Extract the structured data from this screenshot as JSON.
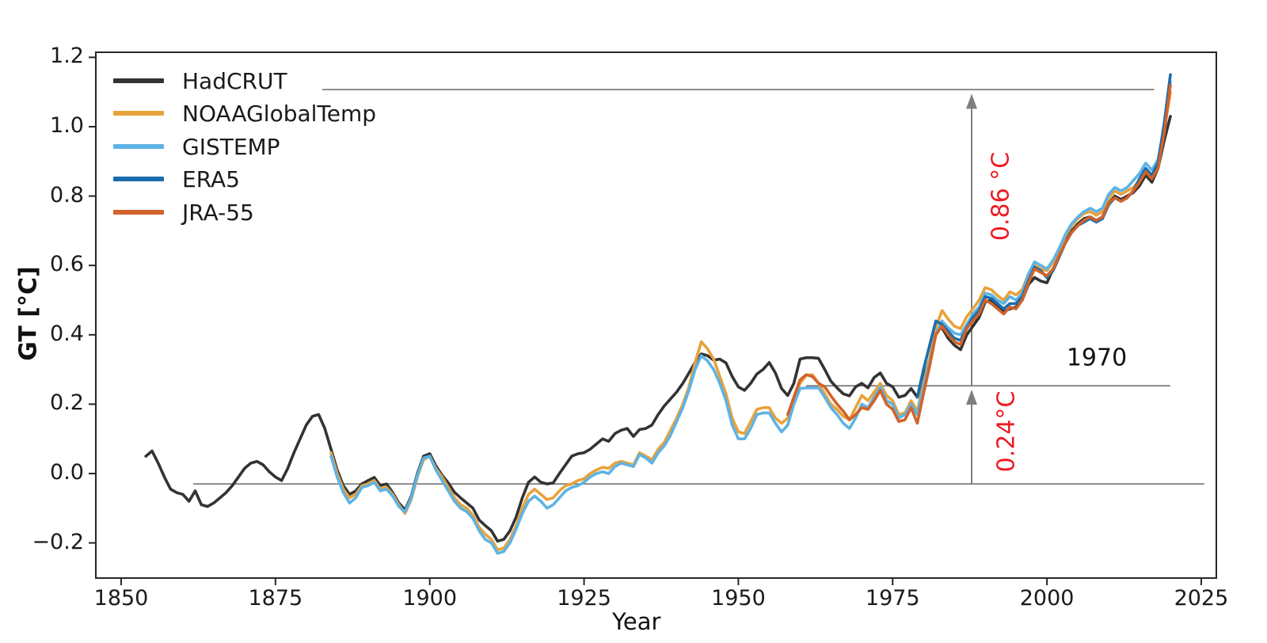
{
  "chart_data": {
    "type": "line",
    "title": "",
    "xlabel": "Year",
    "ylabel": "GT [°C]",
    "xlim": [
      1845.9,
      2027.4
    ],
    "ylim": [
      -0.3,
      1.215
    ],
    "grid": false,
    "legend_position": "upper-left",
    "x_ticks": [
      1850,
      1875,
      1900,
      1925,
      1950,
      1975,
      2000,
      2025
    ],
    "y_ticks": [
      "1.2",
      "1.0",
      "0.8",
      "0.6",
      "0.4",
      "0.2",
      "0.0",
      "−0.2"
    ],
    "y_tick_values": [
      1.2,
      1.0,
      0.8,
      0.6,
      0.4,
      0.2,
      0.0,
      -0.2
    ],
    "axis_color": "#262626",
    "annotation_gray": "#7f7f7f",
    "annotation_red": "#ec1c24",
    "series": [
      {
        "name": "HadCRUT",
        "color": "#333333",
        "start_year": 1854,
        "values": [
          0.05,
          0.065,
          0.03,
          -0.01,
          -0.045,
          -0.055,
          -0.06,
          -0.08,
          -0.05,
          -0.09,
          -0.095,
          -0.085,
          -0.07,
          -0.055,
          -0.035,
          -0.01,
          0.015,
          0.03,
          0.035,
          0.025,
          0.005,
          -0.01,
          -0.02,
          0.015,
          0.06,
          0.1,
          0.14,
          0.165,
          0.17,
          0.13,
          0.07,
          0.01,
          -0.035,
          -0.06,
          -0.05,
          -0.03,
          -0.02,
          -0.011,
          -0.035,
          -0.03,
          -0.055,
          -0.085,
          -0.105,
          -0.066,
          0.0,
          0.05,
          0.057,
          0.022,
          -0.005,
          -0.027,
          -0.054,
          -0.07,
          -0.085,
          -0.1,
          -0.134,
          -0.15,
          -0.165,
          -0.195,
          -0.19,
          -0.165,
          -0.125,
          -0.07,
          -0.025,
          -0.01,
          -0.025,
          -0.03,
          -0.027,
          0.0,
          0.025,
          0.05,
          0.057,
          0.06,
          0.07,
          0.085,
          0.1,
          0.093,
          0.115,
          0.125,
          0.13,
          0.107,
          0.127,
          0.13,
          0.14,
          0.17,
          0.195,
          0.215,
          0.235,
          0.26,
          0.29,
          0.32,
          0.345,
          0.34,
          0.327,
          0.33,
          0.319,
          0.28,
          0.25,
          0.24,
          0.26,
          0.287,
          0.3,
          0.32,
          0.29,
          0.245,
          0.225,
          0.26,
          0.33,
          0.334,
          0.334,
          0.332,
          0.3,
          0.266,
          0.247,
          0.23,
          0.224,
          0.25,
          0.26,
          0.247,
          0.277,
          0.29,
          0.26,
          0.25,
          0.22,
          0.225,
          0.245,
          0.22,
          0.27,
          0.33,
          0.41,
          0.42,
          0.39,
          0.37,
          0.357,
          0.4,
          0.425,
          0.45,
          0.495,
          0.5,
          0.48,
          0.467,
          0.475,
          0.48,
          0.5,
          0.545,
          0.565,
          0.555,
          0.55,
          0.59,
          0.63,
          0.67,
          0.7,
          0.72,
          0.735,
          0.74,
          0.73,
          0.74,
          0.78,
          0.8,
          0.79,
          0.8,
          0.81,
          0.83,
          0.86,
          0.84,
          0.88,
          0.96,
          1.03
        ]
      },
      {
        "name": "NOAAGlobalTemp",
        "color": "#e8a23a",
        "start_year": 1884,
        "values": [
          0.06,
          0.0,
          -0.045,
          -0.07,
          -0.06,
          -0.035,
          -0.03,
          -0.02,
          -0.045,
          -0.04,
          -0.06,
          -0.09,
          -0.115,
          -0.075,
          -0.01,
          0.04,
          0.05,
          0.015,
          -0.01,
          -0.04,
          -0.07,
          -0.09,
          -0.1,
          -0.12,
          -0.155,
          -0.175,
          -0.19,
          -0.22,
          -0.215,
          -0.19,
          -0.15,
          -0.1,
          -0.06,
          -0.045,
          -0.06,
          -0.075,
          -0.07,
          -0.05,
          -0.035,
          -0.03,
          -0.02,
          -0.015,
          0.0,
          0.01,
          0.018,
          0.015,
          0.03,
          0.035,
          0.03,
          0.025,
          0.06,
          0.05,
          0.04,
          0.07,
          0.09,
          0.125,
          0.16,
          0.2,
          0.25,
          0.32,
          0.38,
          0.36,
          0.33,
          0.28,
          0.23,
          0.16,
          0.12,
          0.115,
          0.15,
          0.185,
          0.19,
          0.19,
          0.16,
          0.145,
          0.16,
          0.21,
          0.26,
          0.283,
          0.285,
          0.26,
          0.23,
          0.2,
          0.185,
          0.165,
          0.155,
          0.19,
          0.225,
          0.21,
          0.235,
          0.26,
          0.225,
          0.21,
          0.17,
          0.175,
          0.21,
          0.18,
          0.26,
          0.33,
          0.42,
          0.47,
          0.445,
          0.425,
          0.418,
          0.452,
          0.475,
          0.5,
          0.536,
          0.53,
          0.513,
          0.5,
          0.524,
          0.515,
          0.53,
          0.575,
          0.6,
          0.59,
          0.585,
          0.61,
          0.645,
          0.685,
          0.715,
          0.735,
          0.75,
          0.755,
          0.745,
          0.755,
          0.795,
          0.815,
          0.805,
          0.815,
          0.825,
          0.845,
          0.875,
          0.855,
          0.89,
          0.99,
          1.1
        ]
      },
      {
        "name": "GISTEMP",
        "color": "#5eb3e4",
        "start_year": 1884,
        "values": [
          0.05,
          -0.01,
          -0.055,
          -0.085,
          -0.07,
          -0.04,
          -0.035,
          -0.025,
          -0.05,
          -0.045,
          -0.065,
          -0.095,
          -0.11,
          -0.07,
          -0.005,
          0.045,
          0.05,
          0.01,
          -0.02,
          -0.05,
          -0.08,
          -0.1,
          -0.11,
          -0.13,
          -0.165,
          -0.19,
          -0.2,
          -0.23,
          -0.225,
          -0.2,
          -0.16,
          -0.115,
          -0.08,
          -0.065,
          -0.08,
          -0.1,
          -0.09,
          -0.07,
          -0.05,
          -0.04,
          -0.035,
          -0.025,
          -0.01,
          0.0,
          0.005,
          0.0,
          0.02,
          0.03,
          0.025,
          0.02,
          0.055,
          0.045,
          0.03,
          0.06,
          0.08,
          0.11,
          0.15,
          0.19,
          0.24,
          0.3,
          0.34,
          0.325,
          0.3,
          0.26,
          0.21,
          0.14,
          0.1,
          0.1,
          0.13,
          0.17,
          0.175,
          0.175,
          0.145,
          0.12,
          0.14,
          0.2,
          0.245,
          0.247,
          0.247,
          0.247,
          0.22,
          0.19,
          0.17,
          0.145,
          0.13,
          0.16,
          0.2,
          0.19,
          0.22,
          0.25,
          0.21,
          0.2,
          0.16,
          0.17,
          0.2,
          0.17,
          0.25,
          0.32,
          0.4,
          0.44,
          0.42,
          0.405,
          0.4,
          0.43,
          0.46,
          0.48,
          0.52,
          0.515,
          0.5,
          0.49,
          0.51,
          0.5,
          0.52,
          0.575,
          0.61,
          0.6,
          0.59,
          0.615,
          0.65,
          0.69,
          0.72,
          0.74,
          0.755,
          0.765,
          0.755,
          0.765,
          0.805,
          0.825,
          0.815,
          0.825,
          0.845,
          0.865,
          0.895,
          0.875,
          0.905,
          1.0,
          1.13
        ]
      },
      {
        "name": "ERA5",
        "color": "#1b6dab",
        "start_year": 1979,
        "values": [
          0.22,
          0.3,
          0.37,
          0.44,
          0.43,
          0.41,
          0.39,
          0.384,
          0.42,
          0.45,
          0.47,
          0.51,
          0.505,
          0.49,
          0.475,
          0.49,
          0.49,
          0.51,
          0.555,
          0.595,
          0.585,
          0.565,
          0.585,
          0.625,
          0.665,
          0.695,
          0.715,
          0.725,
          0.735,
          0.725,
          0.735,
          0.775,
          0.795,
          0.785,
          0.795,
          0.815,
          0.85,
          0.88,
          0.86,
          0.895,
          1.01,
          1.15
        ]
      },
      {
        "name": "JRA-55",
        "color": "#d2622a",
        "start_year": 1958,
        "values": [
          0.17,
          0.22,
          0.27,
          0.285,
          0.28,
          0.26,
          0.25,
          0.224,
          0.2,
          0.18,
          0.155,
          0.17,
          0.19,
          0.185,
          0.21,
          0.24,
          0.2,
          0.185,
          0.15,
          0.155,
          0.19,
          0.145,
          0.23,
          0.31,
          0.4,
          0.425,
          0.4,
          0.38,
          0.372,
          0.418,
          0.44,
          0.46,
          0.5,
          0.49,
          0.475,
          0.46,
          0.48,
          0.475,
          0.5,
          0.55,
          0.59,
          0.58,
          0.57,
          0.59,
          0.63,
          0.665,
          0.695,
          0.715,
          0.73,
          0.74,
          0.73,
          0.74,
          0.78,
          0.795,
          0.785,
          0.795,
          0.815,
          0.84,
          0.87,
          0.85,
          0.88,
          0.98,
          1.12
        ]
      }
    ],
    "reference_lines": [
      {
        "y": 1.107,
        "x_start_year": 1882.6,
        "x_end_year": 2017.4
      },
      {
        "y": 0.253,
        "x_start_year": 1961.0,
        "x_end_year": 2020.0
      },
      {
        "y": -0.03,
        "x_start_year": 1861.7,
        "x_end_year": 2025.5
      }
    ],
    "arrows": [
      {
        "x_year": 1987.8,
        "y_from": 0.253,
        "y_to": 1.095
      },
      {
        "x_year": 1987.8,
        "y_from": -0.03,
        "y_to": 0.242
      }
    ],
    "annotations": [
      {
        "text": "0.86 °C",
        "color": "#ec1c24",
        "rotated": true
      },
      {
        "text": "0.24°C",
        "color": "#ec1c24",
        "rotated": true
      },
      {
        "text": "1970",
        "color": "#111111",
        "rotated": false
      }
    ]
  }
}
